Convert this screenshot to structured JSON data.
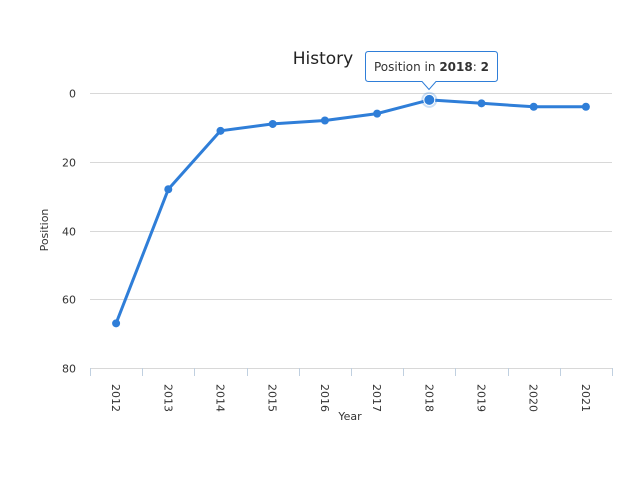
{
  "chart_data": {
    "type": "line",
    "title": "History",
    "xlabel": "Year",
    "ylabel": "Position",
    "categories": [
      "2012",
      "2013",
      "2014",
      "2015",
      "2016",
      "2017",
      "2018",
      "2019",
      "2020",
      "2021"
    ],
    "series": [
      {
        "values": [
          67,
          28,
          11,
          9,
          8,
          6,
          2,
          3,
          4,
          4
        ]
      }
    ],
    "y_ticks": [
      "0",
      "20",
      "40",
      "60",
      "80"
    ],
    "ylim": [
      0,
      80
    ],
    "y_reversed": true,
    "grid": true,
    "line_color": "#2f7ed8",
    "tooltip": {
      "prefix": "Position in",
      "year": "2018",
      "separator": ":",
      "value": "2"
    }
  }
}
